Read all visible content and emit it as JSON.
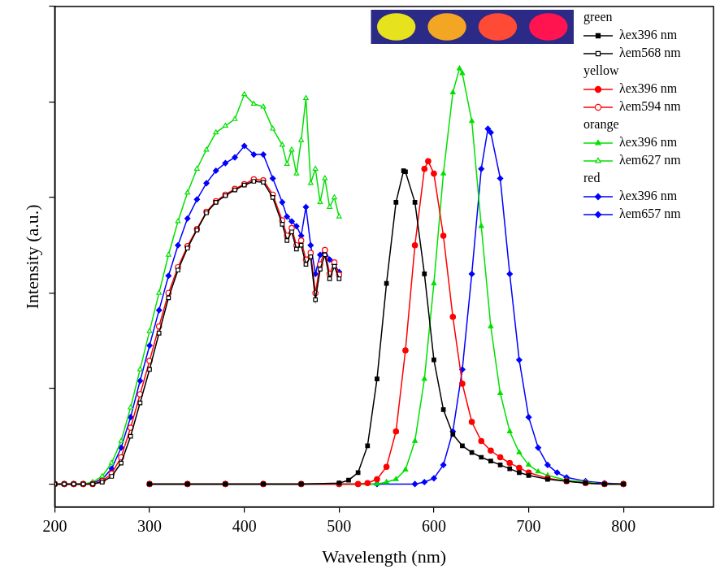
{
  "chart_data": {
    "type": "line",
    "x_label": "Wavelength (nm)",
    "y_label": "Intensity (a.u.)",
    "xlim": [
      200,
      895
    ],
    "xticks": [
      200,
      300,
      400,
      500,
      600,
      700,
      800
    ],
    "ylim": [
      -0.24,
      5
    ],
    "yticks": [
      0,
      1,
      2,
      3,
      4,
      5
    ],
    "tick_labels": "x",
    "grid": false,
    "legend": "upper right",
    "series": [
      {
        "group": "green",
        "name": "λex396 nm",
        "color": "#000000",
        "marker": "square",
        "line_style": "solid",
        "x": [
          300,
          340,
          380,
          420,
          460,
          500,
          510,
          520,
          530,
          540,
          550,
          560,
          568,
          570,
          580,
          590,
          600,
          610,
          620,
          630,
          640,
          650,
          660,
          670,
          680,
          690,
          700,
          720,
          740,
          760,
          780,
          800
        ],
        "values": [
          0,
          0,
          0,
          0,
          0,
          0.01,
          0.04,
          0.12,
          0.4,
          1.1,
          2.1,
          2.95,
          3.28,
          3.27,
          2.95,
          2.2,
          1.3,
          0.78,
          0.52,
          0.4,
          0.33,
          0.28,
          0.24,
          0.2,
          0.16,
          0.12,
          0.09,
          0.05,
          0.03,
          0.01,
          0,
          0
        ]
      },
      {
        "group": "green",
        "name": "λem568 nm",
        "color": "#000000",
        "marker": "open_square",
        "line_style": "solid",
        "x": [
          200,
          210,
          220,
          230,
          240,
          250,
          260,
          270,
          280,
          290,
          300,
          310,
          320,
          330,
          340,
          350,
          360,
          370,
          380,
          390,
          400,
          410,
          420,
          430,
          440,
          445,
          450,
          455,
          460,
          465,
          470,
          475,
          480,
          485,
          490,
          495,
          500
        ],
        "values": [
          0,
          0,
          0,
          0,
          0,
          0.02,
          0.08,
          0.22,
          0.5,
          0.85,
          1.2,
          1.58,
          1.95,
          2.24,
          2.47,
          2.66,
          2.84,
          2.95,
          3.02,
          3.08,
          3.13,
          3.17,
          3.16,
          3.0,
          2.72,
          2.55,
          2.64,
          2.46,
          2.5,
          2.3,
          2.38,
          1.93,
          2.25,
          2.4,
          2.15,
          2.28,
          2.15
        ]
      },
      {
        "group": "yellow",
        "name": "λex396 nm",
        "color": "#ff0000",
        "marker": "circle",
        "line_style": "solid",
        "x": [
          300,
          340,
          380,
          420,
          460,
          500,
          520,
          530,
          540,
          550,
          560,
          570,
          580,
          590,
          594,
          600,
          610,
          620,
          630,
          640,
          650,
          660,
          670,
          680,
          690,
          700,
          720,
          740,
          760,
          780,
          800
        ],
        "values": [
          0,
          0,
          0,
          0,
          0,
          0,
          0,
          0.01,
          0.05,
          0.18,
          0.55,
          1.4,
          2.5,
          3.3,
          3.38,
          3.25,
          2.6,
          1.75,
          1.05,
          0.65,
          0.45,
          0.35,
          0.28,
          0.22,
          0.17,
          0.12,
          0.06,
          0.03,
          0.01,
          0,
          0
        ]
      },
      {
        "group": "yellow",
        "name": "λem594 nm",
        "color": "#ff0000",
        "marker": "open_circle",
        "line_style": "solid",
        "x": [
          200,
          210,
          220,
          230,
          240,
          250,
          260,
          270,
          280,
          290,
          300,
          310,
          320,
          330,
          340,
          350,
          360,
          370,
          380,
          390,
          400,
          410,
          420,
          430,
          440,
          445,
          450,
          455,
          460,
          465,
          470,
          475,
          480,
          485,
          490,
          495,
          500
        ],
        "values": [
          0,
          0,
          0,
          0,
          0,
          0.03,
          0.11,
          0.28,
          0.59,
          0.94,
          1.29,
          1.65,
          2.0,
          2.27,
          2.49,
          2.67,
          2.85,
          2.96,
          3.03,
          3.09,
          3.14,
          3.19,
          3.18,
          3.03,
          2.76,
          2.6,
          2.68,
          2.5,
          2.55,
          2.35,
          2.42,
          2.0,
          2.3,
          2.45,
          2.2,
          2.32,
          2.19
        ]
      },
      {
        "group": "orange",
        "name": "λex396 nm",
        "color": "#00e000",
        "marker": "triangle",
        "line_style": "solid",
        "x": [
          300,
          340,
          380,
          420,
          460,
          500,
          540,
          550,
          560,
          570,
          580,
          590,
          600,
          610,
          620,
          627,
          630,
          640,
          650,
          660,
          670,
          680,
          690,
          700,
          710,
          720,
          740,
          760,
          780,
          800
        ],
        "values": [
          0,
          0,
          0,
          0,
          0,
          0,
          0,
          0.02,
          0.05,
          0.15,
          0.45,
          1.1,
          2.1,
          3.25,
          4.1,
          4.35,
          4.3,
          3.8,
          2.7,
          1.65,
          0.95,
          0.55,
          0.33,
          0.2,
          0.13,
          0.09,
          0.04,
          0.02,
          0,
          0
        ]
      },
      {
        "group": "orange",
        "name": "λem627 nm",
        "color": "#00e000",
        "marker": "open_triangle",
        "line_style": "solid",
        "x": [
          200,
          210,
          220,
          230,
          240,
          250,
          260,
          270,
          280,
          290,
          300,
          310,
          320,
          330,
          340,
          350,
          360,
          370,
          380,
          390,
          400,
          410,
          420,
          430,
          440,
          445,
          450,
          455,
          460,
          465,
          470,
          475,
          480,
          485,
          490,
          495,
          500
        ],
        "values": [
          0,
          0,
          0,
          0,
          0.02,
          0.08,
          0.22,
          0.45,
          0.8,
          1.2,
          1.6,
          2.0,
          2.4,
          2.75,
          3.05,
          3.3,
          3.5,
          3.68,
          3.75,
          3.82,
          4.08,
          3.98,
          3.95,
          3.72,
          3.55,
          3.35,
          3.5,
          3.25,
          3.6,
          4.04,
          3.15,
          3.3,
          2.95,
          3.2,
          2.9,
          3.0,
          2.8
        ]
      },
      {
        "group": "red",
        "name": "λex396 nm",
        "color": "#0000ff",
        "marker": "diamond",
        "line_style": "solid",
        "x": [
          300,
          340,
          380,
          420,
          460,
          500,
          540,
          580,
          590,
          600,
          610,
          620,
          630,
          640,
          650,
          657,
          660,
          670,
          680,
          690,
          700,
          710,
          720,
          730,
          740,
          760,
          780,
          800
        ],
        "values": [
          0,
          0,
          0,
          0,
          0,
          0,
          0,
          0,
          0.02,
          0.06,
          0.2,
          0.55,
          1.2,
          2.2,
          3.3,
          3.72,
          3.68,
          3.2,
          2.2,
          1.3,
          0.7,
          0.38,
          0.2,
          0.12,
          0.07,
          0.03,
          0.01,
          0
        ]
      },
      {
        "group": "red",
        "name": "λem657 nm",
        "color": "#0000ff",
        "marker": "diamond",
        "line_style": "solid",
        "x": [
          200,
          210,
          220,
          230,
          240,
          250,
          260,
          270,
          280,
          290,
          300,
          310,
          320,
          330,
          340,
          350,
          360,
          370,
          380,
          390,
          400,
          410,
          420,
          430,
          440,
          445,
          450,
          455,
          460,
          465,
          470,
          475,
          480,
          485,
          490,
          495,
          500
        ],
        "values": [
          0,
          0,
          0,
          0,
          0.01,
          0.05,
          0.16,
          0.38,
          0.7,
          1.08,
          1.45,
          1.82,
          2.18,
          2.5,
          2.78,
          2.98,
          3.15,
          3.28,
          3.36,
          3.42,
          3.54,
          3.45,
          3.45,
          3.2,
          2.95,
          2.8,
          2.75,
          2.7,
          2.6,
          2.9,
          2.5,
          2.2,
          2.4,
          2.45,
          2.35,
          2.3,
          2.22
        ]
      }
    ]
  }
}
